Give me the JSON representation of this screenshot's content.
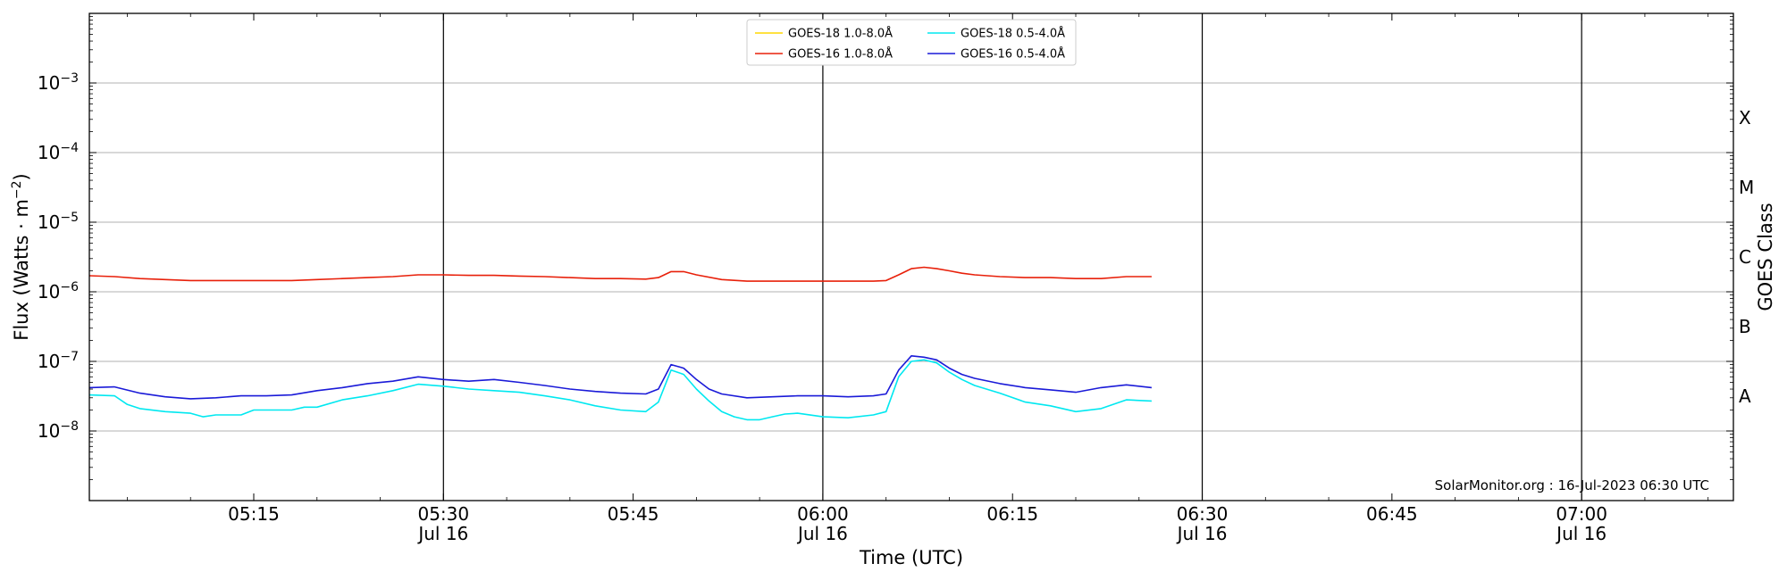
{
  "chart_data": {
    "type": "line",
    "y_scale": "log",
    "ylim": [
      1e-09,
      0.01
    ],
    "xlim": [
      "05:02",
      "07:12"
    ],
    "date": "Jul 16",
    "xlabel": "Time (UTC)",
    "ylabel_prefix": "Flux (Watts · m",
    "ylabel_exp": "−2",
    "ylabel_suffix": ")",
    "right_label": "GOES Class",
    "grid": "horizontal",
    "legend_placement": "top-center",
    "x_ticks": [
      {
        "t": "05:15",
        "label": "05:15",
        "date": ""
      },
      {
        "t": "05:30",
        "label": "05:30",
        "date": "Jul 16"
      },
      {
        "t": "05:45",
        "label": "05:45",
        "date": ""
      },
      {
        "t": "06:00",
        "label": "06:00",
        "date": "Jul 16"
      },
      {
        "t": "06:15",
        "label": "06:15",
        "date": ""
      },
      {
        "t": "06:30",
        "label": "06:30",
        "date": "Jul 16"
      },
      {
        "t": "06:45",
        "label": "06:45",
        "date": ""
      },
      {
        "t": "07:00",
        "label": "07:00",
        "date": "Jul 16"
      }
    ],
    "vlines": [
      "05:30",
      "06:00",
      "06:30",
      "07:00"
    ],
    "y_ticks": [
      {
        "v": 1e-08,
        "base": "10",
        "exp": "−8"
      },
      {
        "v": 1e-07,
        "base": "10",
        "exp": "−7"
      },
      {
        "v": 1e-06,
        "base": "10",
        "exp": "−6"
      },
      {
        "v": 1e-05,
        "base": "10",
        "exp": "−5"
      },
      {
        "v": 0.0001,
        "base": "10",
        "exp": "−4"
      },
      {
        "v": 0.001,
        "base": "10",
        "exp": "−3"
      }
    ],
    "goes_classes": [
      {
        "label": "A",
        "v": 3.16e-08
      },
      {
        "label": "B",
        "v": 3.16e-07
      },
      {
        "label": "C",
        "v": 3.16e-06
      },
      {
        "label": "M",
        "v": 3.16e-05
      },
      {
        "label": "X",
        "v": 0.000316
      }
    ],
    "credit": "SolarMonitor.org : 16-Jul-2023 06:30 UTC",
    "series": [
      {
        "name": "GOES-18 1.0-8.0Å",
        "color": "#ffd700",
        "x": [],
        "y": []
      },
      {
        "name": "GOES-16 1.0-8.0Å",
        "color": "#e8200a",
        "x": [
          "05:02",
          "05:04",
          "05:06",
          "05:08",
          "05:10",
          "05:12",
          "05:14",
          "05:16",
          "05:18",
          "05:20",
          "05:22",
          "05:24",
          "05:26",
          "05:28",
          "05:30",
          "05:32",
          "05:34",
          "05:36",
          "05:38",
          "05:40",
          "05:42",
          "05:44",
          "05:46",
          "05:47",
          "05:48",
          "05:49",
          "05:50",
          "05:52",
          "05:54",
          "05:56",
          "05:58",
          "06:00",
          "06:02",
          "06:04",
          "06:05",
          "06:06",
          "06:07",
          "06:08",
          "06:09",
          "06:10",
          "06:11",
          "06:12",
          "06:14",
          "06:16",
          "06:18",
          "06:20",
          "06:22",
          "06:24",
          "06:26"
        ],
        "y": [
          1.7e-06,
          1.65e-06,
          1.55e-06,
          1.5e-06,
          1.45e-06,
          1.45e-06,
          1.45e-06,
          1.45e-06,
          1.45e-06,
          1.5e-06,
          1.55e-06,
          1.6e-06,
          1.65e-06,
          1.75e-06,
          1.75e-06,
          1.72e-06,
          1.72e-06,
          1.68e-06,
          1.65e-06,
          1.6e-06,
          1.55e-06,
          1.55e-06,
          1.52e-06,
          1.6e-06,
          1.95e-06,
          1.95e-06,
          1.75e-06,
          1.5e-06,
          1.42e-06,
          1.42e-06,
          1.42e-06,
          1.42e-06,
          1.42e-06,
          1.42e-06,
          1.45e-06,
          1.75e-06,
          2.15e-06,
          2.25e-06,
          2.15e-06,
          2e-06,
          1.85e-06,
          1.75e-06,
          1.65e-06,
          1.6e-06,
          1.6e-06,
          1.55e-06,
          1.55e-06,
          1.65e-06,
          1.65e-06
        ]
      },
      {
        "name": "GOES-18 0.5-4.0Å",
        "color": "#00e8f0",
        "x": [
          "05:02",
          "05:04",
          "05:05",
          "05:06",
          "05:08",
          "05:10",
          "05:11",
          "05:12",
          "05:14",
          "05:15",
          "05:16",
          "05:18",
          "05:19",
          "05:20",
          "05:22",
          "05:24",
          "05:26",
          "05:28",
          "05:30",
          "05:32",
          "05:34",
          "05:36",
          "05:38",
          "05:40",
          "05:42",
          "05:44",
          "05:46",
          "05:47",
          "05:48",
          "05:49",
          "05:50",
          "05:51",
          "05:52",
          "05:53",
          "05:54",
          "05:55",
          "05:56",
          "05:57",
          "05:58",
          "06:00",
          "06:02",
          "06:04",
          "06:05",
          "06:06",
          "06:07",
          "06:08",
          "06:09",
          "06:10",
          "06:11",
          "06:12",
          "06:14",
          "06:16",
          "06:18",
          "06:20",
          "06:22",
          "06:24",
          "06:26"
        ],
        "y": [
          3.3e-08,
          3.2e-08,
          2.4e-08,
          2.1e-08,
          1.9e-08,
          1.8e-08,
          1.6e-08,
          1.7e-08,
          1.7e-08,
          2e-08,
          2e-08,
          2e-08,
          2.2e-08,
          2.2e-08,
          2.8e-08,
          3.2e-08,
          3.8e-08,
          4.7e-08,
          4.4e-08,
          4e-08,
          3.8e-08,
          3.6e-08,
          3.2e-08,
          2.8e-08,
          2.3e-08,
          2e-08,
          1.9e-08,
          2.6e-08,
          7.5e-08,
          6.5e-08,
          4e-08,
          2.7e-08,
          1.9e-08,
          1.6e-08,
          1.45e-08,
          1.45e-08,
          1.6e-08,
          1.75e-08,
          1.8e-08,
          1.6e-08,
          1.55e-08,
          1.7e-08,
          1.9e-08,
          6e-08,
          1e-07,
          1.05e-07,
          9.5e-08,
          7e-08,
          5.5e-08,
          4.5e-08,
          3.5e-08,
          2.6e-08,
          2.3e-08,
          1.9e-08,
          2.1e-08,
          2.8e-08,
          2.7e-08
        ]
      },
      {
        "name": "GOES-16 0.5-4.0Å",
        "color": "#1a1ad8",
        "x": [
          "05:02",
          "05:04",
          "05:06",
          "05:08",
          "05:10",
          "05:12",
          "05:14",
          "05:16",
          "05:18",
          "05:20",
          "05:22",
          "05:24",
          "05:26",
          "05:28",
          "05:30",
          "05:32",
          "05:34",
          "05:36",
          "05:38",
          "05:40",
          "05:42",
          "05:44",
          "05:46",
          "05:47",
          "05:48",
          "05:49",
          "05:50",
          "05:51",
          "05:52",
          "05:54",
          "05:56",
          "05:58",
          "06:00",
          "06:02",
          "06:04",
          "06:05",
          "06:06",
          "06:07",
          "06:08",
          "06:09",
          "06:10",
          "06:11",
          "06:12",
          "06:14",
          "06:16",
          "06:18",
          "06:20",
          "06:22",
          "06:24",
          "06:26"
        ],
        "y": [
          4.2e-08,
          4.3e-08,
          3.5e-08,
          3.1e-08,
          2.9e-08,
          3e-08,
          3.2e-08,
          3.2e-08,
          3.3e-08,
          3.8e-08,
          4.2e-08,
          4.8e-08,
          5.2e-08,
          6e-08,
          5.5e-08,
          5.2e-08,
          5.5e-08,
          5e-08,
          4.5e-08,
          4e-08,
          3.7e-08,
          3.5e-08,
          3.4e-08,
          4e-08,
          9e-08,
          8e-08,
          5.5e-08,
          4e-08,
          3.4e-08,
          3e-08,
          3.1e-08,
          3.2e-08,
          3.2e-08,
          3.1e-08,
          3.2e-08,
          3.4e-08,
          7.5e-08,
          1.2e-07,
          1.15e-07,
          1.05e-07,
          8e-08,
          6.5e-08,
          5.7e-08,
          4.8e-08,
          4.2e-08,
          3.9e-08,
          3.6e-08,
          4.2e-08,
          4.6e-08,
          4.2e-08
        ]
      }
    ]
  }
}
